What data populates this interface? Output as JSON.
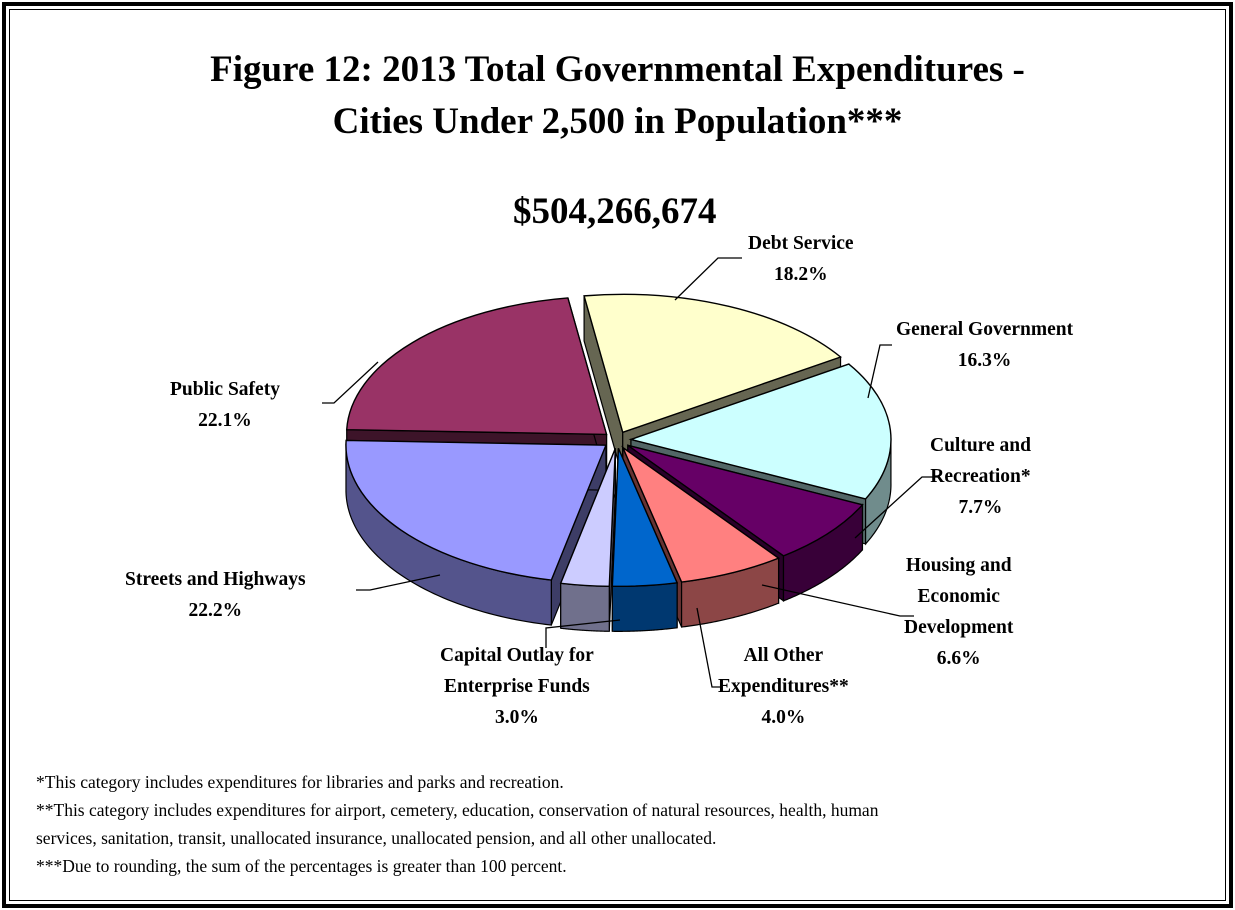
{
  "title_line1": "Figure 12:  2013 Total Governmental Expenditures -",
  "title_line2": "Cities Under 2,500 in Population***",
  "total": "$504,266,674",
  "chart_data": {
    "type": "pie",
    "title": "Figure 12:  2013 Total Governmental Expenditures - Cities Under 2,500 in Population***",
    "total": "$504,266,674",
    "slices": [
      {
        "label": "Debt Service",
        "label_lines": [
          "Debt Service"
        ],
        "pct_text": "18.2%",
        "value": 18.2,
        "color": "#FFFFCC"
      },
      {
        "label": "General Government",
        "label_lines": [
          "General Government"
        ],
        "pct_text": "16.3%",
        "value": 16.3,
        "color": "#CCFFFF"
      },
      {
        "label": "Culture and Recreation*",
        "label_lines": [
          "Culture and",
          "Recreation*"
        ],
        "pct_text": "7.7%",
        "value": 7.7,
        "color": "#660066"
      },
      {
        "label": "Housing and Economic Development",
        "label_lines": [
          "Housing and",
          "Economic",
          "Development"
        ],
        "pct_text": "6.6%",
        "value": 6.6,
        "color": "#FF8080"
      },
      {
        "label": "All Other Expenditures**",
        "label_lines": [
          "All Other",
          "Expenditures**"
        ],
        "pct_text": "4.0%",
        "value": 4.0,
        "color": "#0066CC"
      },
      {
        "label": "Capital Outlay for Enterprise Funds",
        "label_lines": [
          "Capital Outlay for",
          "Enterprise Funds"
        ],
        "pct_text": "3.0%",
        "value": 3.0,
        "color": "#CCCCFF"
      },
      {
        "label": "Streets and Highways",
        "label_lines": [
          "Streets and Highways"
        ],
        "pct_text": "22.2%",
        "value": 22.2,
        "color": "#9999FF"
      },
      {
        "label": "Public Safety",
        "label_lines": [
          "Public Safety"
        ],
        "pct_text": "22.1%",
        "value": 22.1,
        "color": "#993366"
      }
    ]
  },
  "footnotes": [
    "*This category includes expenditures for libraries and parks and recreation.",
    "**This category includes expenditures for airport, cemetery, education, conservation of natural resources, health, human",
    "services, sanitation, transit, unallocated insurance, unallocated pension, and all other unallocated.",
    "***Due to rounding, the sum of the percentages is greater than 100 percent."
  ]
}
